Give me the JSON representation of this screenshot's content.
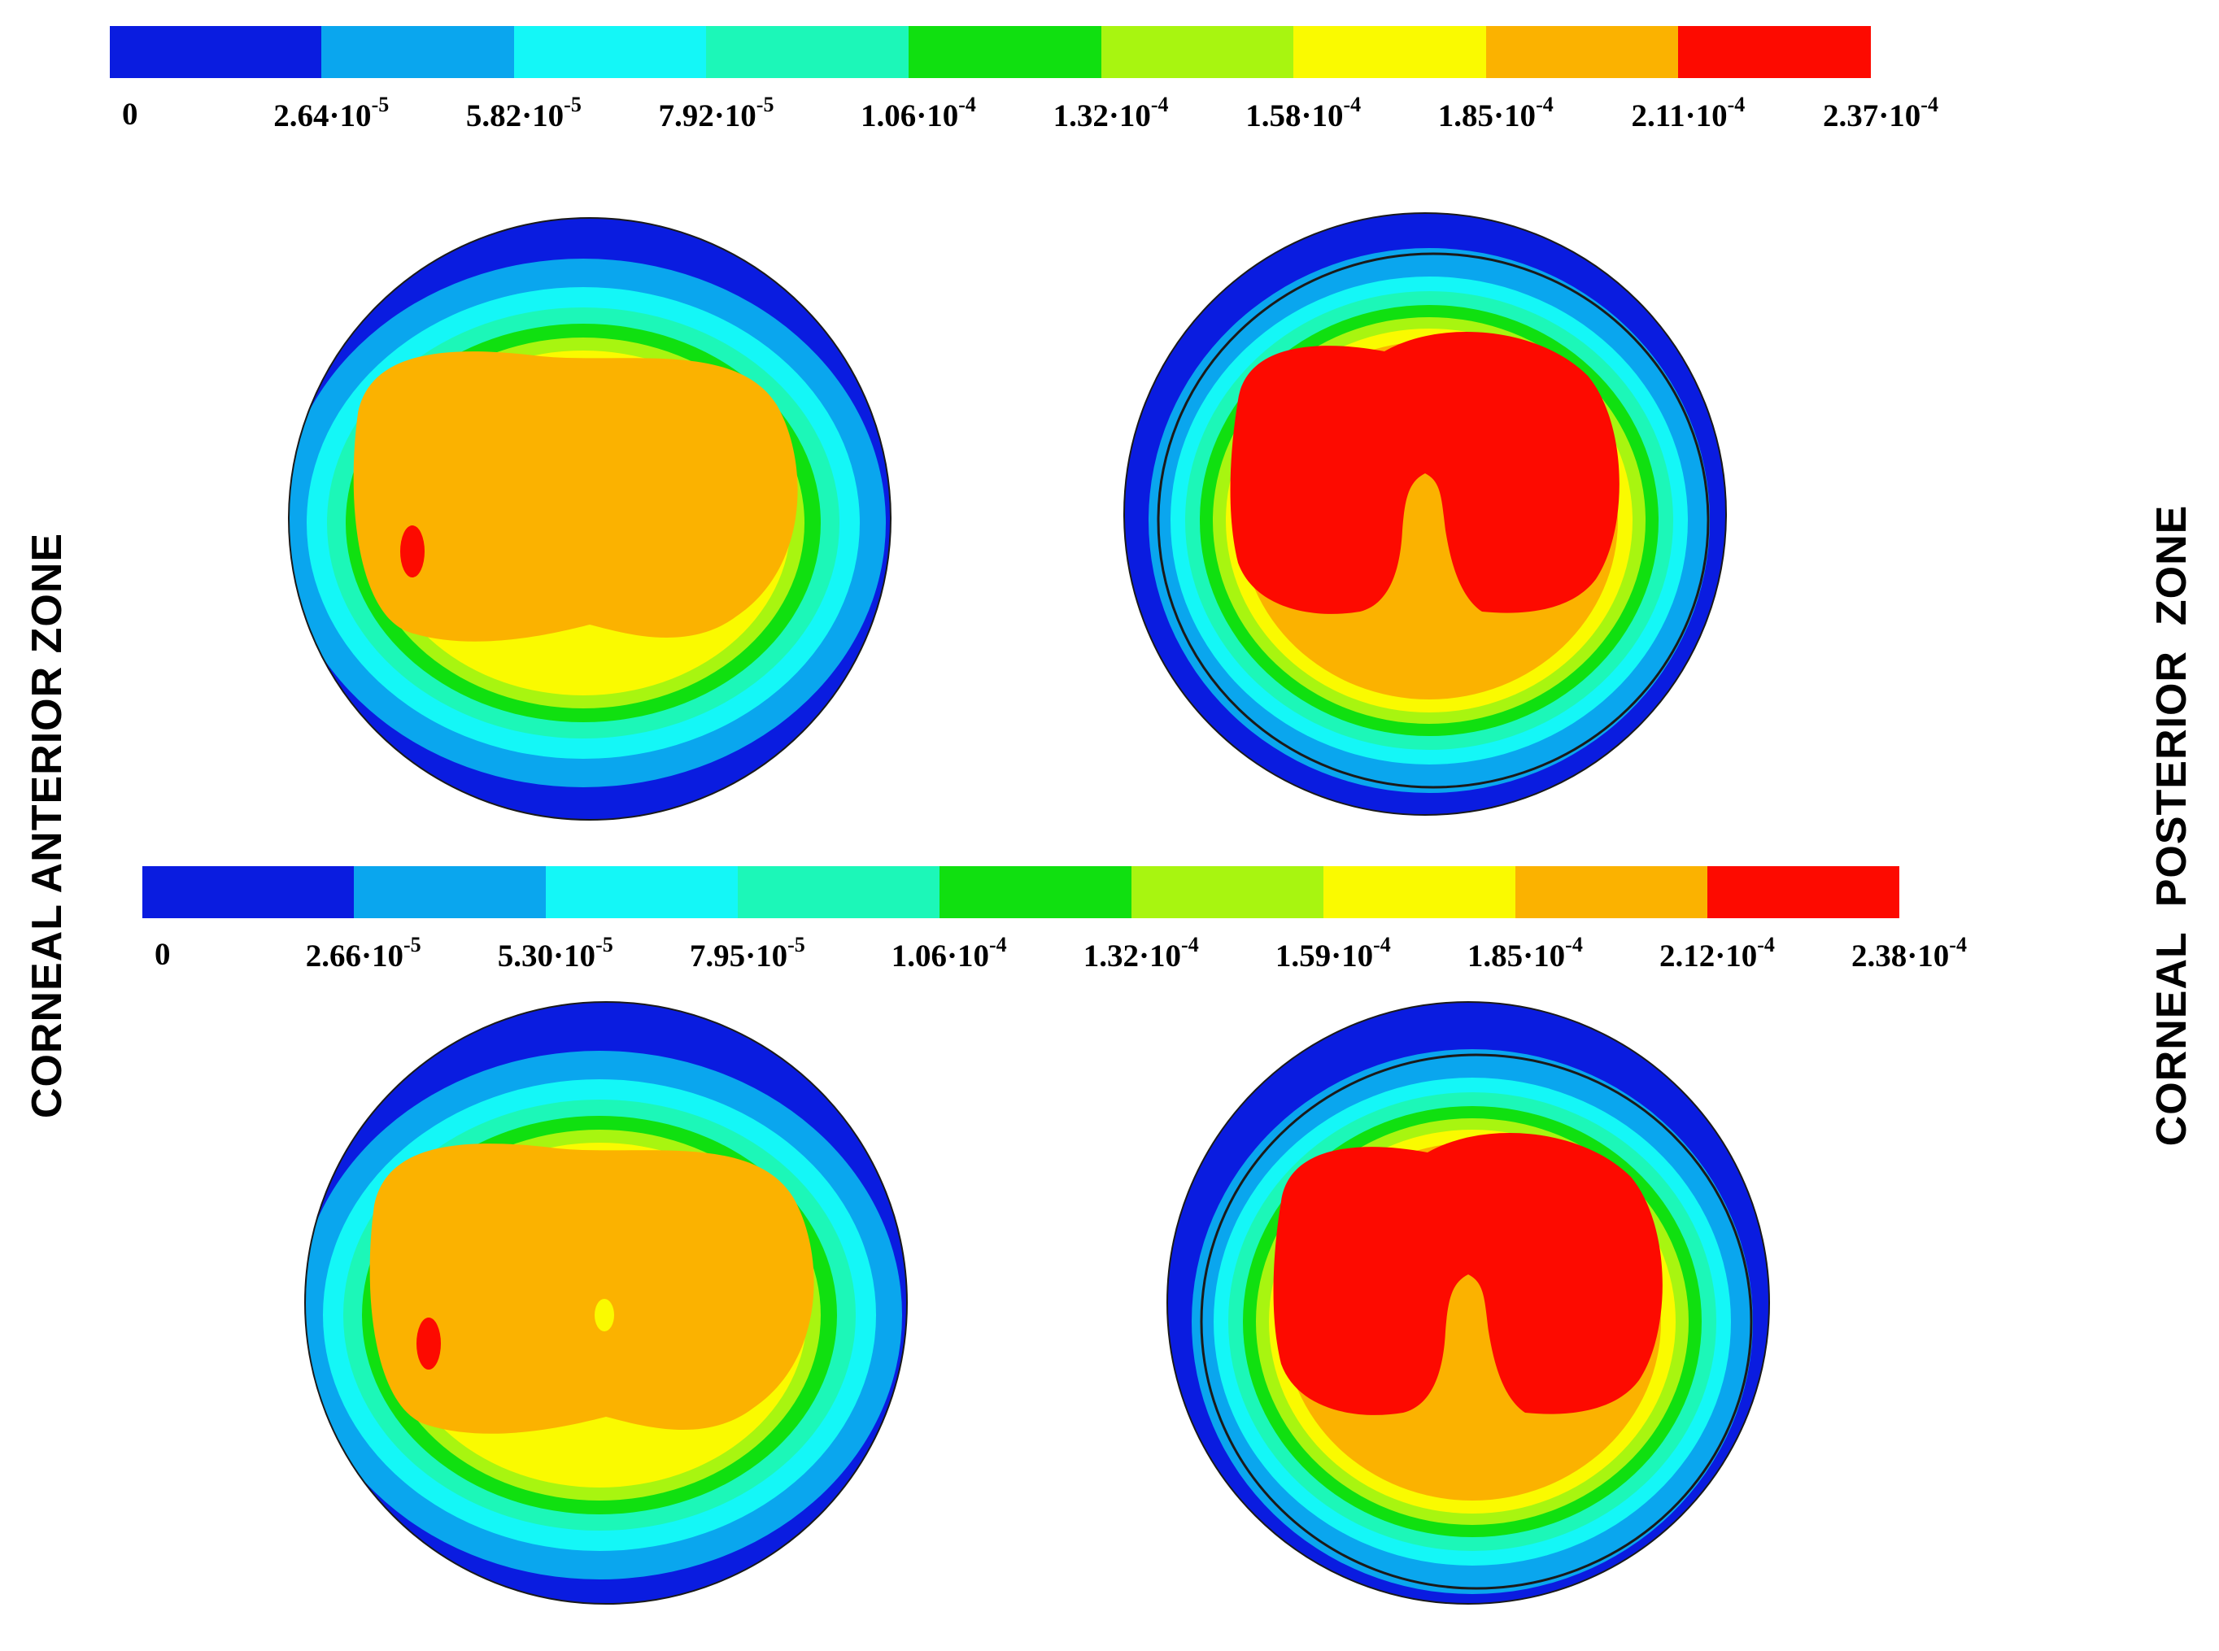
{
  "colors": {
    "blue": "#0a1ce0",
    "sky": "#0aa6ee",
    "cyan": "#14f7f7",
    "aqua": "#1cf7b8",
    "green": "#10e010",
    "lime": "#a8f510",
    "yellow": "#fafa00",
    "orange": "#fbb200",
    "red": "#fd0a00",
    "outline": "#1a1a1a"
  },
  "side_labels": {
    "left": "CORNEAL ANTERIOR ZONE",
    "right": "CORNEAL  POSTERIOR  ZONE"
  },
  "legends": [
    {
      "ticks": [
        {
          "mant": "0",
          "exp": ""
        },
        {
          "mant": "2.64·10",
          "exp": "-5"
        },
        {
          "mant": "5.82·10",
          "exp": "-5"
        },
        {
          "mant": "7.92·10",
          "exp": "-5"
        },
        {
          "mant": "1.06·10",
          "exp": "-4"
        },
        {
          "mant": "1.32·10",
          "exp": "-4"
        },
        {
          "mant": "1.58·10",
          "exp": "-4"
        },
        {
          "mant": "1.85·10",
          "exp": "-4"
        },
        {
          "mant": "2.11·10",
          "exp": "-4"
        },
        {
          "mant": "2.37·10",
          "exp": "-4"
        }
      ]
    },
    {
      "ticks": [
        {
          "mant": "0",
          "exp": ""
        },
        {
          "mant": "2.66·10",
          "exp": "-5"
        },
        {
          "mant": "5.30·10",
          "exp": "-5"
        },
        {
          "mant": "7.95·10",
          "exp": "-5"
        },
        {
          "mant": "1.06·10",
          "exp": "-4"
        },
        {
          "mant": "1.32·10",
          "exp": "-4"
        },
        {
          "mant": "1.59·10",
          "exp": "-4"
        },
        {
          "mant": "1.85·10",
          "exp": "-4"
        },
        {
          "mant": "2.12·10",
          "exp": "-4"
        },
        {
          "mant": "2.38·10",
          "exp": "-4"
        }
      ]
    }
  ],
  "legend_colors": [
    "blue",
    "sky",
    "cyan",
    "aqua",
    "green",
    "lime",
    "yellow",
    "orange",
    "red"
  ],
  "discs": [
    {
      "zone": "anterior",
      "variant": 1
    },
    {
      "zone": "posterior",
      "variant": 1
    },
    {
      "zone": "anterior",
      "variant": 2
    },
    {
      "zone": "posterior",
      "variant": 2
    }
  ]
}
